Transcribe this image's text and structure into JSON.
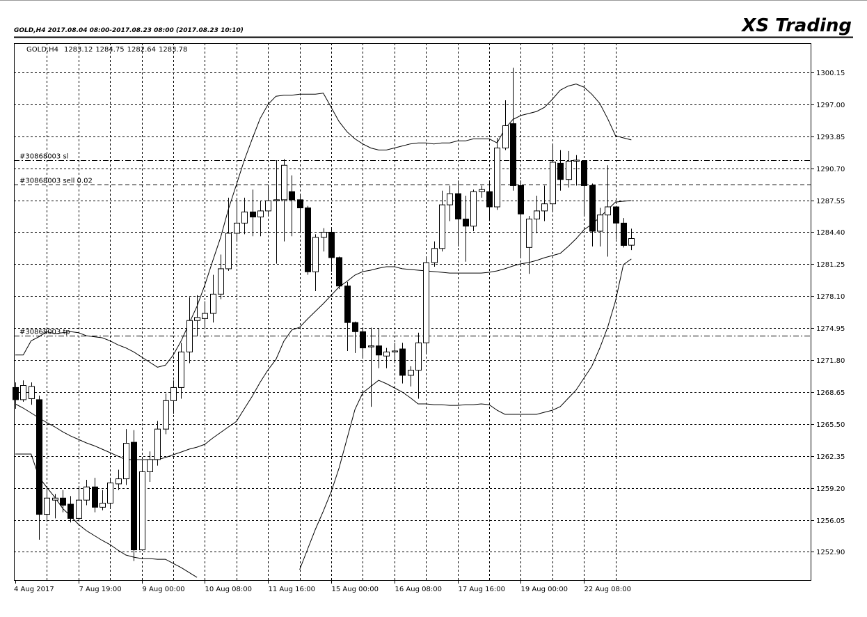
{
  "chart_data": {
    "type": "candlestick",
    "title": "XS Trading",
    "subtitle": "GOLD,H4  2017.08.04 08:00-2017.08.23 08:00  (2017.08.23 10:10)",
    "symbol": "GOLD,H4",
    "categories": [
      "4 Aug 2017",
      null,
      null,
      null,
      null,
      null,
      null,
      null,
      "7 Aug 19:00",
      null,
      null,
      null,
      null,
      null,
      null,
      null,
      "9 Aug 00:00",
      null,
      null,
      null,
      null,
      null,
      null,
      null,
      "10 Aug 08:00",
      null,
      null,
      null,
      null,
      null,
      null,
      null,
      "11 Aug 16:00",
      null,
      null,
      null,
      null,
      null,
      null,
      null,
      "15 Aug 00:00",
      null,
      null,
      null,
      null,
      null,
      null,
      null,
      "16 Aug 08:00",
      null,
      null,
      null,
      null,
      null,
      null,
      null,
      "17 Aug 16:00",
      null,
      null,
      null,
      null,
      null,
      null,
      null,
      "19 Aug 00:00",
      null,
      null,
      null,
      null,
      null,
      null,
      null,
      "22 Aug 08:00",
      null,
      null,
      null,
      null,
      null,
      null
    ],
    "open": [
      1269.1,
      1267.9,
      1268.0,
      1267.9,
      1256.6,
      1258.0,
      1258.2,
      1257.6,
      1256.2,
      1258.0,
      1259.3,
      1257.3,
      1257.7,
      1259.6,
      1260.1,
      1263.7,
      1253.1,
      1260.8,
      1262.0,
      1265.0,
      1267.8,
      1269.1,
      1272.6,
      1275.7,
      1275.9,
      1276.4,
      1278.3,
      1280.8,
      1284.3,
      1285.3,
      1286.4,
      1285.9,
      1286.5,
      1287.5,
      1287.6,
      1288.4,
      1287.6,
      1286.8,
      1280.5,
      1283.9,
      1284.4,
      1281.9,
      1279.1,
      1275.5,
      1274.6,
      1273.1,
      1273.2,
      1272.2,
      1272.6,
      1272.9,
      1270.3,
      1270.8,
      1273.5,
      1281.4,
      1282.8,
      1287.1,
      1288.2,
      1285.7,
      1285.0,
      1288.4,
      1288.4,
      1286.9,
      1292.7,
      1295.1,
      1289.0,
      1282.9,
      1285.7,
      1286.5,
      1287.2,
      1291.2,
      1289.6,
      1291.4,
      1291.4,
      1289.0,
      1284.5,
      1286.1,
      1286.9,
      1285.3,
      1283.12
    ],
    "high": [
      1269.6,
      1269.8,
      1269.6,
      1268.3,
      1259.3,
      1258.6,
      1259.0,
      1258.4,
      1259.4,
      1260.0,
      1260.2,
      1259.0,
      1260.2,
      1261.0,
      1265.0,
      1264.9,
      1262.0,
      1262.8,
      1265.8,
      1268.5,
      1269.8,
      1273.5,
      1278.0,
      1278.2,
      1277.6,
      1280.2,
      1282.2,
      1287.8,
      1287.6,
      1287.8,
      1288.6,
      1287.5,
      1289.0,
      1291.5,
      1291.6,
      1290.0,
      1288.2,
      1287.0,
      1284.2,
      1284.8,
      1284.8,
      1282.0,
      1279.5,
      1275.6,
      1275.0,
      1275.0,
      1274.9,
      1273.0,
      1273.5,
      1273.5,
      1271.2,
      1274.5,
      1282.0,
      1283.5,
      1288.5,
      1289.0,
      1289.5,
      1288.0,
      1288.6,
      1289.0,
      1289.5,
      1293.7,
      1297.4,
      1300.6,
      1289.5,
      1286.0,
      1288.0,
      1289.0,
      1293.0,
      1292.5,
      1292.4,
      1292.0,
      1291.5,
      1289.2,
      1286.8,
      1291.0,
      1287.0,
      1285.8,
      1284.75
    ],
    "low": [
      1267.0,
      1267.7,
      1267.4,
      1254.1,
      1256.0,
      1256.2,
      1256.8,
      1255.8,
      1256.0,
      1257.5,
      1256.8,
      1257.0,
      1257.2,
      1259.0,
      1259.5,
      1252.0,
      1253.0,
      1259.8,
      1261.4,
      1264.5,
      1266.5,
      1268.0,
      1271.5,
      1274.2,
      1275.0,
      1275.5,
      1277.8,
      1280.6,
      1283.6,
      1284.2,
      1284.0,
      1284.0,
      1286.0,
      1281.3,
      1283.5,
      1284.0,
      1284.5,
      1280.2,
      1278.6,
      1282.5,
      1280.5,
      1278.8,
      1272.7,
      1272.5,
      1272.0,
      1267.2,
      1271.0,
      1271.0,
      1271.5,
      1269.5,
      1269.2,
      1268.0,
      1272.5,
      1281.0,
      1282.5,
      1285.5,
      1283.0,
      1281.5,
      1284.5,
      1287.8,
      1285.5,
      1286.6,
      1292.5,
      1288.5,
      1282.0,
      1280.3,
      1284.3,
      1285.5,
      1286.5,
      1288.5,
      1288.8,
      1289.0,
      1286.0,
      1283.0,
      1283.0,
      1282.0,
      1283.7,
      1282.9,
      1282.64
    ],
    "close": [
      1267.9,
      1269.3,
      1269.2,
      1256.6,
      1258.2,
      1258.2,
      1257.5,
      1256.2,
      1258.0,
      1259.3,
      1257.3,
      1257.7,
      1259.7,
      1260.1,
      1263.6,
      1253.1,
      1260.8,
      1262.0,
      1265.0,
      1267.8,
      1269.1,
      1272.6,
      1275.7,
      1276.0,
      1276.4,
      1278.3,
      1280.8,
      1284.3,
      1285.3,
      1286.4,
      1285.9,
      1286.5,
      1287.5,
      1287.6,
      1291.0,
      1287.6,
      1286.8,
      1280.5,
      1283.9,
      1284.4,
      1281.9,
      1279.1,
      1275.5,
      1274.6,
      1273.0,
      1273.2,
      1272.3,
      1272.6,
      1272.7,
      1270.3,
      1270.8,
      1273.5,
      1281.4,
      1282.8,
      1287.1,
      1288.2,
      1285.7,
      1285.0,
      1288.4,
      1288.6,
      1286.9,
      1292.7,
      1294.9,
      1289.0,
      1286.2,
      1285.7,
      1286.5,
      1287.2,
      1291.3,
      1289.6,
      1291.4,
      1291.5,
      1289.0,
      1284.5,
      1286.1,
      1286.9,
      1285.3,
      1283.1,
      1283.78
    ],
    "overlays": [
      {
        "color": "#000000",
        "values": [
          1272.3,
          1272.3,
          1273.7,
          1274.1,
          1274.6,
          1274.4,
          1274.5,
          1274.6,
          1274.5,
          1274.2,
          1274.1,
          1274.0,
          1273.7,
          1273.3,
          1273.0,
          1272.6,
          1272.1,
          1271.6,
          1271.1,
          1271.3,
          1272.3,
          1273.7,
          1275.4,
          1277.1,
          1279.2,
          1281.6,
          1283.9,
          1286.7,
          1289.1,
          1291.5,
          1293.6,
          1295.6,
          1297.0,
          1297.8,
          1297.9,
          1297.9,
          1298.0,
          1298.0,
          1298.0,
          1298.1,
          1296.7,
          1295.3,
          1294.3,
          1293.6,
          1293.1,
          1292.7,
          1292.5,
          1292.5,
          1292.7,
          1292.9,
          1293.1,
          1293.2,
          1293.2,
          1293.1,
          1293.2,
          1293.2,
          1293.4,
          1293.4,
          1293.6,
          1293.6,
          1293.6,
          1293.2,
          1294.6,
          1295.5,
          1295.9,
          1296.1,
          1296.3,
          1296.7,
          1297.5,
          1298.4,
          1298.8,
          1299.0,
          1298.7,
          1298.0,
          1297.1,
          1295.6,
          1293.9,
          1293.7,
          1293.5
        ]
      },
      {
        "color": "#000000",
        "values": [
          1267.48,
          1267.07,
          1266.59,
          1266.11,
          1265.63,
          1265.22,
          1264.73,
          1264.32,
          1263.98,
          1263.64,
          1263.36,
          1263.02,
          1262.68,
          1262.33,
          1261.99,
          1261.99,
          1261.99,
          1261.99,
          1261.99,
          1262.2,
          1262.47,
          1262.74,
          1263.02,
          1263.22,
          1263.5,
          1264.12,
          1264.67,
          1265.22,
          1265.76,
          1267.0,
          1268.24,
          1269.61,
          1270.84,
          1271.87,
          1273.66,
          1274.76,
          1275.03,
          1275.85,
          1276.61,
          1277.36,
          1278.19,
          1279.01,
          1279.56,
          1280.18,
          1280.52,
          1280.66,
          1280.86,
          1281.0,
          1281.0,
          1280.8,
          1280.73,
          1280.66,
          1280.59,
          1280.52,
          1280.45,
          1280.38,
          1280.38,
          1280.38,
          1280.38,
          1280.38,
          1280.45,
          1280.59,
          1280.8,
          1281.07,
          1281.28,
          1281.41,
          1281.62,
          1281.89,
          1282.1,
          1282.31,
          1282.99,
          1283.75,
          1284.64,
          1285.19,
          1285.87,
          1286.63,
          1287.38,
          1287.45,
          1287.52
        ]
      },
      {
        "color": "#000000",
        "values": [
          1262.54,
          1262.54,
          1262.54,
          1260.27,
          1259.24,
          1258.28,
          1257.18,
          1256.43,
          1255.61,
          1254.99,
          1254.51,
          1254.03,
          1253.62,
          1253.07,
          1252.59,
          1252.38,
          1252.24,
          1252.24,
          1252.17,
          1252.17,
          1251.76,
          1251.35,
          1250.87,
          1250.39,
          null,
          null,
          null,
          null,
          null,
          null,
          null,
          null,
          null,
          null,
          null,
          null,
          1251.15,
          1253.14,
          1255.13,
          1256.91,
          1258.83,
          1261.17,
          1264.05,
          1266.93,
          1268.58,
          1269.2,
          1269.81,
          1269.47,
          1269.06,
          1268.65,
          1268.1,
          1267.48,
          1267.48,
          1267.41,
          1267.41,
          1267.34,
          1267.34,
          1267.41,
          1267.41,
          1267.48,
          1267.41,
          1266.86,
          1266.45,
          1266.45,
          1266.45,
          1266.45,
          1266.45,
          1266.66,
          1266.86,
          1267.21,
          1268.03,
          1268.85,
          1270.02,
          1271.19,
          1272.97,
          1275.03,
          1277.64,
          1281.21,
          1281.76
        ]
      }
    ],
    "levels": [
      {
        "label": "#30868003 sl",
        "value": 1291.5,
        "style": "dashdot"
      },
      {
        "label": "#30868003 sell 0.02",
        "value": 1289.1,
        "style": "dashed"
      },
      {
        "label": "#30868003 tp",
        "value": 1274.2,
        "style": "dashdot"
      }
    ],
    "up_color": "#ffffff",
    "down_color": "#000000",
    "ylim": [
      1250.12,
      1303.03
    ],
    "yticks": [
      {
        "value": 1252.9,
        "label": "1252.90"
      },
      1256.05,
      {
        "value": 1259.2,
        "label": "1259.20"
      },
      1262.35,
      {
        "value": 1265.5,
        "label": "1265.50"
      },
      1268.65,
      {
        "value": 1271.8,
        "label": "1271.80"
      },
      1274.95,
      {
        "value": 1278.1,
        "label": "1278.10"
      },
      1281.25,
      {
        "value": 1284.4,
        "label": "1284.40"
      },
      1287.55,
      {
        "value": 1290.7,
        "label": "1290.70"
      },
      1293.85,
      {
        "value": 1297,
        "label": "1297.00"
      },
      1300.15
    ],
    "grid": true
  }
}
